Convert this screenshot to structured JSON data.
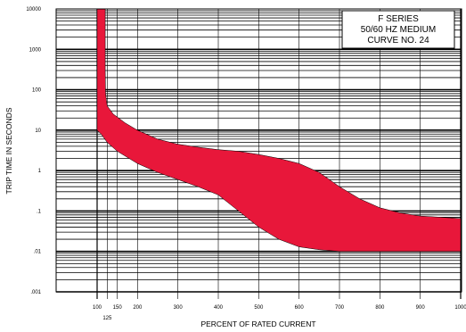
{
  "chart_data": {
    "type": "area",
    "title_lines": [
      "F SERIES",
      "50/60 HZ MEDIUM",
      "CURVE NO. 24"
    ],
    "xlabel": "PERCENT OF RATED CURRENT",
    "ylabel": "TRIP TIME IN SECONDS",
    "xlim": [
      0,
      1000
    ],
    "ylim": [
      0.001,
      10000
    ],
    "y_scale": "log",
    "x_ticks": [
      {
        "value": 100,
        "label": "100"
      },
      {
        "value": 125,
        "label": "125"
      },
      {
        "value": 150,
        "label": "150"
      },
      {
        "value": 200,
        "label": "200"
      },
      {
        "value": 300,
        "label": "300"
      },
      {
        "value": 400,
        "label": "400"
      },
      {
        "value": 500,
        "label": "500"
      },
      {
        "value": 600,
        "label": "600"
      },
      {
        "value": 700,
        "label": "700"
      },
      {
        "value": 800,
        "label": "800"
      },
      {
        "value": 900,
        "label": "900"
      },
      {
        "value": 1000,
        "label": "1000"
      }
    ],
    "y_ticks": [
      {
        "value": 10000,
        "label": "10000"
      },
      {
        "value": 1000,
        "label": "1000"
      },
      {
        "value": 100,
        "label": "100"
      },
      {
        "value": 10,
        "label": "10"
      },
      {
        "value": 1,
        "label": "1"
      },
      {
        "value": 0.1,
        "label": ".1"
      },
      {
        "value": 0.01,
        "label": ".01"
      },
      {
        "value": 0.001,
        "label": ".001"
      }
    ],
    "grid": true,
    "band_color": "#e8173a",
    "band_upper": [
      [
        120,
        10000
      ],
      [
        120,
        300
      ],
      [
        121,
        80
      ],
      [
        125,
        40
      ],
      [
        140,
        25
      ],
      [
        170,
        15
      ],
      [
        200,
        10
      ],
      [
        250,
        6
      ],
      [
        300,
        4.5
      ],
      [
        350,
        3.8
      ],
      [
        400,
        3.3
      ],
      [
        450,
        3
      ],
      [
        500,
        2.5
      ],
      [
        550,
        2
      ],
      [
        600,
        1.5
      ],
      [
        650,
        0.9
      ],
      [
        700,
        0.4
      ],
      [
        750,
        0.2
      ],
      [
        800,
        0.12
      ],
      [
        850,
        0.09
      ],
      [
        900,
        0.075
      ],
      [
        950,
        0.07
      ],
      [
        1000,
        0.065
      ]
    ],
    "band_lower": [
      [
        100,
        10000
      ],
      [
        100,
        10
      ],
      [
        110,
        8
      ],
      [
        125,
        5
      ],
      [
        150,
        3
      ],
      [
        200,
        1.5
      ],
      [
        250,
        0.9
      ],
      [
        300,
        0.6
      ],
      [
        350,
        0.4
      ],
      [
        400,
        0.25
      ],
      [
        450,
        0.1
      ],
      [
        500,
        0.04
      ],
      [
        550,
        0.02
      ],
      [
        600,
        0.013
      ],
      [
        650,
        0.011
      ],
      [
        700,
        0.01
      ],
      [
        800,
        0.01
      ],
      [
        900,
        0.01
      ],
      [
        1000,
        0.01
      ]
    ]
  }
}
